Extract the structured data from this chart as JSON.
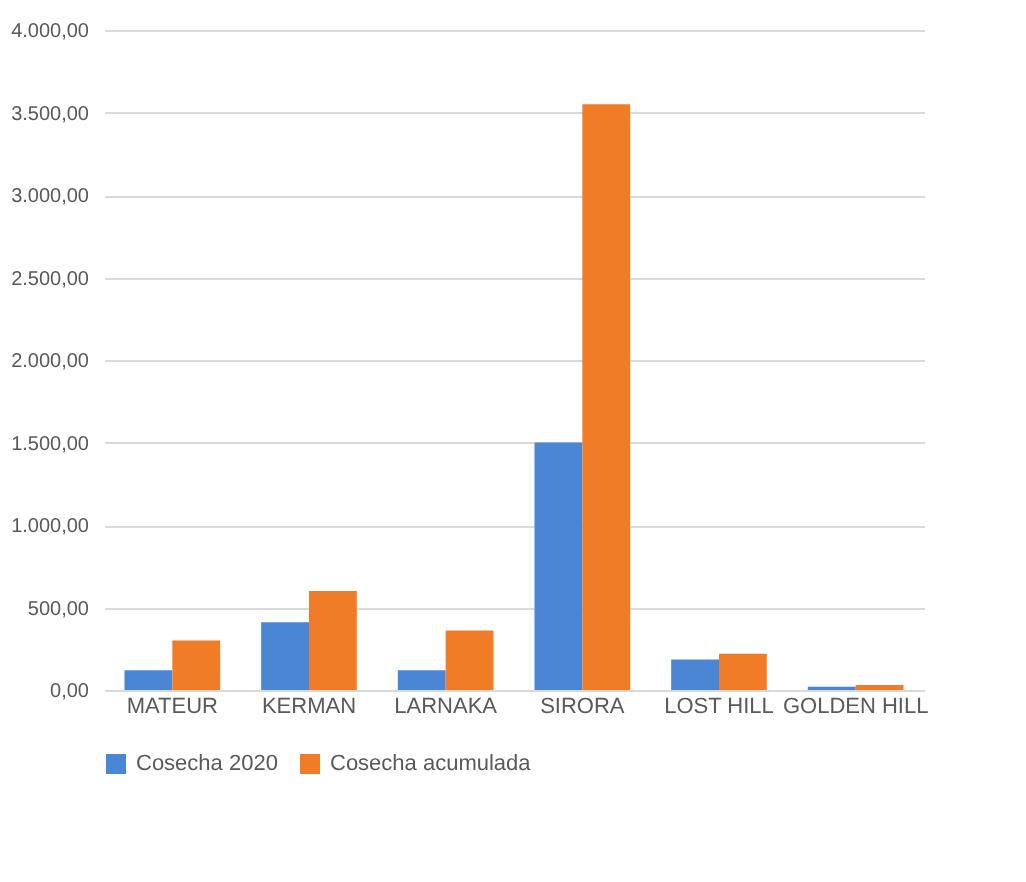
{
  "chart_data": {
    "type": "bar",
    "categories": [
      "MATEUR",
      "KERMAN",
      "LARNAKA",
      "SIRORA",
      "LOST HILL",
      "GOLDEN HILL"
    ],
    "series": [
      {
        "name": "Cosecha 2020",
        "color": "#4a86d4",
        "values": [
          120,
          410,
          120,
          1500,
          185,
          20
        ]
      },
      {
        "name": "Cosecha acumulada",
        "color": "#f07c28",
        "values": [
          300,
          600,
          360,
          3550,
          220,
          30
        ]
      }
    ],
    "ylim": [
      0,
      4000
    ],
    "yticks": [
      {
        "value": 0,
        "label": "0,00"
      },
      {
        "value": 500,
        "label": "500,00"
      },
      {
        "value": 1000,
        "label": "1.000,00"
      },
      {
        "value": 1500,
        "label": "1.500,00"
      },
      {
        "value": 2000,
        "label": "2.000,00"
      },
      {
        "value": 2500,
        "label": "2.500,00"
      },
      {
        "value": 3000,
        "label": "3.000,00"
      },
      {
        "value": 3500,
        "label": "3.500,00"
      },
      {
        "value": 4000,
        "label": "4.000,00"
      }
    ],
    "grid": "y",
    "legend": "bottom"
  }
}
